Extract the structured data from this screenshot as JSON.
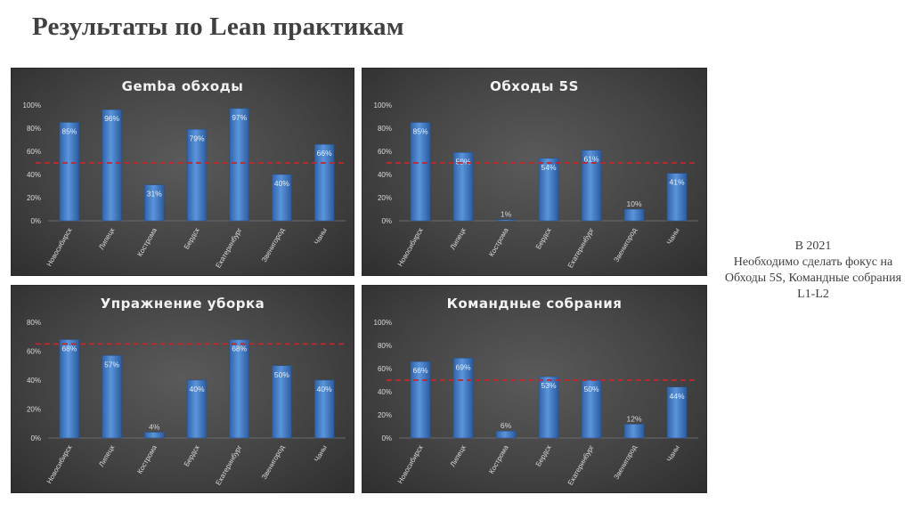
{
  "slide": {
    "title": "Результаты по Lean практикам",
    "note": [
      "В 2021",
      "Необходимо сделать фокус на Обходы 5S, Командные собрания L1-L2"
    ]
  },
  "colors": {
    "bar": "#3d79c4",
    "bar_light": "#5a95dc",
    "target_line": "#c0282c",
    "text": "#d9d9d9"
  },
  "chart_data": [
    {
      "type": "bar",
      "title": "Gemba обходы",
      "categories": [
        "Новосибирск",
        "Липецк",
        "Кострома",
        "Бердск",
        "Екатеринбург",
        "Звенигород",
        "Чаны"
      ],
      "values": [
        85,
        96,
        31,
        79,
        97,
        40,
        66
      ],
      "data_labels": [
        "85%",
        "96%",
        "31%",
        "79%",
        "97%",
        "40%",
        "66%"
      ],
      "yticks": [
        "0%",
        "20%",
        "40%",
        "60%",
        "80%",
        "100%"
      ],
      "ylim": [
        0,
        100
      ],
      "target": 50,
      "grid": false
    },
    {
      "type": "bar",
      "title": "Обходы 5S",
      "categories": [
        "Новосибирск",
        "Липецк",
        "Кострома",
        "Бердск",
        "Екатеринбург",
        "Звенигород",
        "Чаны"
      ],
      "values": [
        85,
        59,
        1,
        54,
        61,
        10,
        41
      ],
      "data_labels": [
        "85%",
        "59%",
        "1%",
        "54%",
        "61%",
        "10%",
        "41%"
      ],
      "yticks": [
        "0%",
        "20%",
        "40%",
        "60%",
        "80%",
        "100%"
      ],
      "ylim": [
        0,
        100
      ],
      "target": 50,
      "grid": false
    },
    {
      "type": "bar",
      "title": "Упражнение уборка",
      "categories": [
        "Новосибирск",
        "Липецк",
        "Кострома",
        "Бердск",
        "Екатеринбург",
        "Звенигород",
        "Чаны"
      ],
      "values": [
        68,
        57,
        4,
        40,
        68,
        50,
        40
      ],
      "data_labels": [
        "68%",
        "57%",
        "4%",
        "40%",
        "68%",
        "50%",
        "40%"
      ],
      "yticks": [
        "0%",
        "20%",
        "40%",
        "60%",
        "80%"
      ],
      "ylim": [
        0,
        80
      ],
      "target": 65,
      "grid": false
    },
    {
      "type": "bar",
      "title": "Командные собрания",
      "categories": [
        "Новосибирск",
        "Липецк",
        "Кострома",
        "Бердск",
        "Екатеринбург",
        "Звенигород",
        "Чаны"
      ],
      "values": [
        66,
        69,
        6,
        53,
        50,
        12,
        44
      ],
      "data_labels": [
        "66%",
        "69%",
        "6%",
        "53%",
        "50%",
        "12%",
        "44%"
      ],
      "yticks": [
        "0%",
        "20%",
        "40%",
        "60%",
        "80%",
        "100%"
      ],
      "ylim": [
        0,
        100
      ],
      "target": 50,
      "grid": false
    }
  ]
}
